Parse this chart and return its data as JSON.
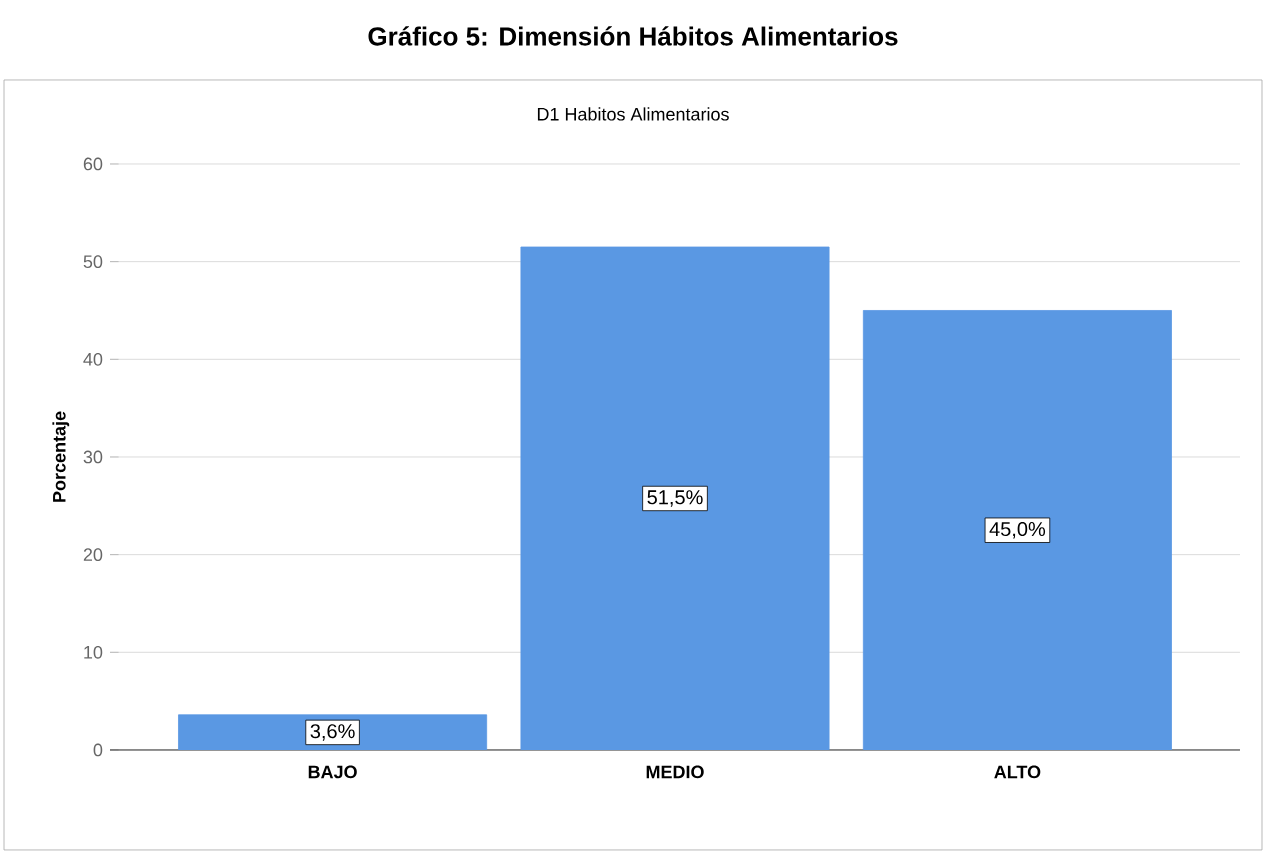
{
  "chart_data": {
    "type": "bar",
    "title": "Gráfico 5: Dimensión Hábitos Alimentarios",
    "subtitle": "D1 Habitos Alimentarios",
    "ylabel": "Porcentaje",
    "categories": [
      "BAJO",
      "MEDIO",
      "ALTO"
    ],
    "values": [
      3.6,
      51.5,
      45.0
    ],
    "value_labels": [
      "3,6%",
      "51,5%",
      "45,0%"
    ],
    "color": "#5a98e3",
    "ylim": [
      0,
      60
    ],
    "yticks": [
      0,
      10,
      20,
      30,
      40,
      50,
      60
    ],
    "grid": "y"
  }
}
